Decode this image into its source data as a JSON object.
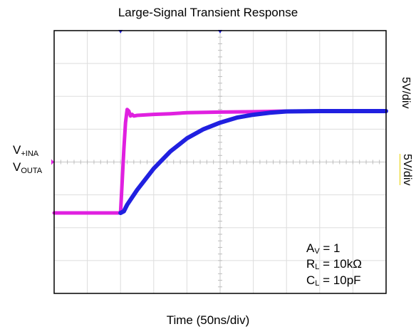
{
  "chart_data": {
    "type": "line",
    "title": "Large-Signal Transient Response",
    "xlabel": "Time (50ns/div)",
    "input_label": {
      "base": "V",
      "sub": "+INA"
    },
    "output_label": {
      "base": "V",
      "sub": "OUTA"
    },
    "scale_labels": [
      "5V/div",
      "5V/div"
    ],
    "divisions": {
      "x": 10,
      "y": 8
    },
    "x_unit_ns_per_div": 50,
    "volts_per_div": 5,
    "series": [
      {
        "color": "#e020e0",
        "x": [
          0,
          0.5,
          1,
          1.5,
          2,
          2.05,
          2.1,
          2.15,
          2.2,
          2.25,
          2.3,
          2.35,
          2.4,
          2.5,
          3,
          3.5,
          4,
          5,
          6,
          7,
          8,
          9,
          10
        ],
        "y": [
          -1.55,
          -1.55,
          -1.55,
          -1.55,
          -1.55,
          -0.6,
          0.4,
          1.2,
          1.6,
          1.55,
          1.4,
          1.45,
          1.4,
          1.42,
          1.45,
          1.47,
          1.5,
          1.52,
          1.53,
          1.55,
          1.55,
          1.55,
          1.55
        ]
      },
      {
        "color": "#2020e0",
        "x": [
          2,
          2.1,
          2.2,
          2.5,
          3,
          3.5,
          4,
          4.5,
          5,
          5.5,
          6,
          6.5,
          7,
          8,
          9,
          10
        ],
        "y": [
          -1.55,
          -1.5,
          -1.3,
          -0.85,
          -0.2,
          0.32,
          0.72,
          1.0,
          1.2,
          1.35,
          1.44,
          1.5,
          1.54,
          1.55,
          1.55,
          1.55
        ]
      }
    ],
    "annotations": [
      {
        "base": "A",
        "sub": "V",
        "rest": " = 1"
      },
      {
        "base": "R",
        "sub": "L",
        "rest": " = 10kΩ"
      },
      {
        "base": "C",
        "sub": "L",
        "rest": " = 10pF"
      }
    ]
  }
}
